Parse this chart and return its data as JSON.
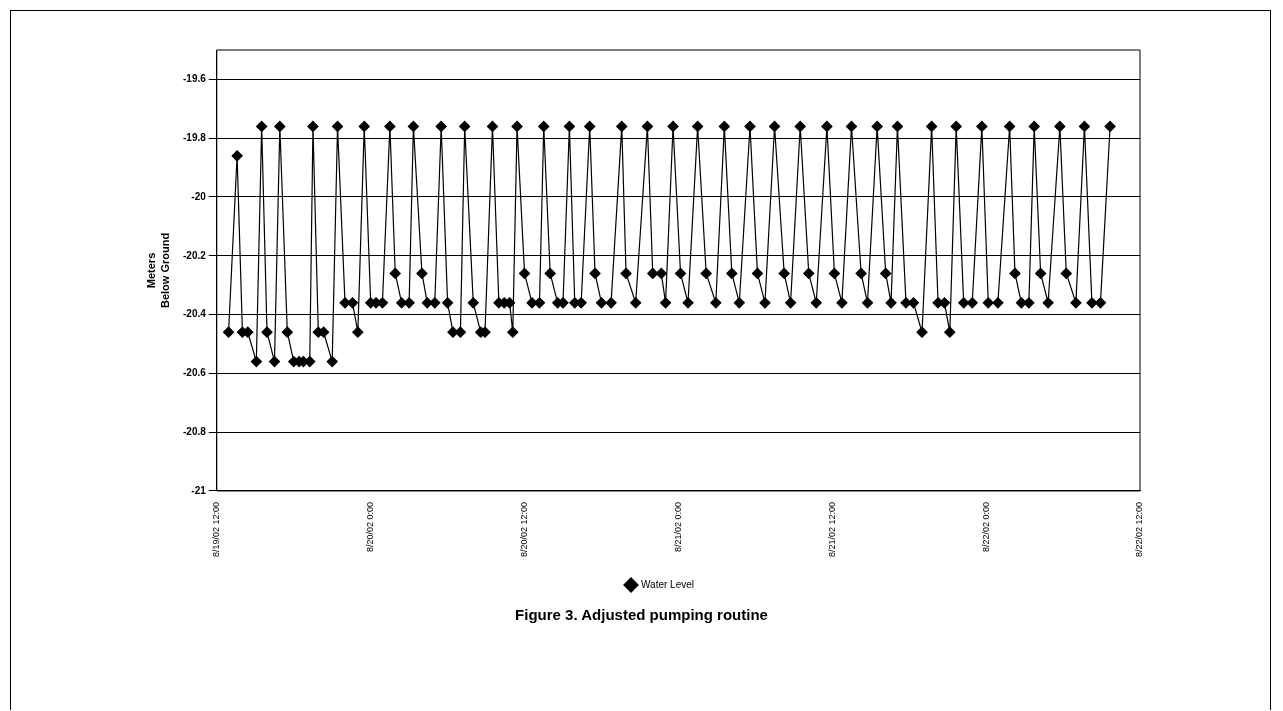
{
  "chart_data": {
    "type": "line",
    "ylabel": "Meters\nBelow Ground",
    "annotations": [
      "Figure 3. Adjusted pumping routine"
    ],
    "xlim": [
      "--08-19T12:00",
      "--08-22T12:00"
    ],
    "xticks": [
      {
        "value": "--08-19T12:00",
        "label": "8/19/02 12:00"
      },
      {
        "value": "--08-20T00:00",
        "label": "8/20/02 0:00"
      },
      {
        "value": "--08-20T12:00",
        "label": "8/20/02 12:00"
      },
      {
        "value": "--08-21T00:00",
        "label": "8/21/02 0:00"
      },
      {
        "value": "--08-21T12:00",
        "label": "8/21/02 12:00"
      },
      {
        "value": "--08-22T00:00",
        "label": "8/22/02 0:00"
      },
      {
        "value": "--08-22T12:00",
        "label": "8/22/02 12:00"
      }
    ],
    "ylim": [
      -21,
      -19.5
    ],
    "yticks": [
      -21,
      -20.8,
      -20.6,
      -20.4,
      -20.2,
      -20,
      -19.8,
      -19.6
    ],
    "grid": "y",
    "legend": "bottom",
    "marker": "diamond",
    "line_style": "solid",
    "series": [
      {
        "name": "Water Level",
        "color": "#000000",
        "x": [
          "--08-19T12:55",
          "--08-19T13:35",
          "--08-19T14:00",
          "--08-19T14:25",
          "--08-19T15:05",
          "--08-19T15:30",
          "--08-19T15:55",
          "--08-19T16:30",
          "--08-19T16:55",
          "--08-19T17:30",
          "--08-19T18:00",
          "--08-19T18:25",
          "--08-19T18:45",
          "--08-19T19:15",
          "--08-19T19:30",
          "--08-19T19:55",
          "--08-19T20:20",
          "--08-19T21:00",
          "--08-19T21:25",
          "--08-19T22:00",
          "--08-19T22:35",
          "--08-19T23:00",
          "--08-19T23:30",
          "--08-20T00:00",
          "--08-20T00:25",
          "--08-20T00:55",
          "--08-20T01:30",
          "--08-20T01:55",
          "--08-20T02:25",
          "--08-20T03:00",
          "--08-20T03:20",
          "--08-20T04:00",
          "--08-20T04:25",
          "--08-20T05:00",
          "--08-20T05:30",
          "--08-20T06:00",
          "--08-20T06:25",
          "--08-20T07:00",
          "--08-20T07:20",
          "--08-20T08:00",
          "--08-20T08:35",
          "--08-20T08:55",
          "--08-20T09:30",
          "--08-20T10:00",
          "--08-20T10:25",
          "--08-20T10:50",
          "--08-20T11:05",
          "--08-20T11:25",
          "--08-20T12:00",
          "--08-20T12:35",
          "--08-20T13:10",
          "--08-20T13:30",
          "--08-20T14:00",
          "--08-20T14:35",
          "--08-20T15:00",
          "--08-20T15:30",
          "--08-20T15:55",
          "--08-20T16:25",
          "--08-20T17:05",
          "--08-20T17:30",
          "--08-20T18:00",
          "--08-20T18:45",
          "--08-20T19:35",
          "--08-20T19:55",
          "--08-20T20:40",
          "--08-20T21:35",
          "--08-20T22:00",
          "--08-20T22:40",
          "--08-20T23:00",
          "--08-20T23:35",
          "--08-21T00:10",
          "--08-21T00:45",
          "--08-21T01:30",
          "--08-21T02:10",
          "--08-21T02:55",
          "--08-21T03:35",
          "--08-21T04:10",
          "--08-21T04:45",
          "--08-21T05:35",
          "--08-21T06:10",
          "--08-21T06:45",
          "--08-21T07:30",
          "--08-21T08:15",
          "--08-21T08:45",
          "--08-21T09:30",
          "--08-21T10:10",
          "--08-21T10:45",
          "--08-21T11:35",
          "--08-21T12:10",
          "--08-21T12:45",
          "--08-21T13:30",
          "--08-21T14:15",
          "--08-21T14:45",
          "--08-21T15:30",
          "--08-21T16:10",
          "--08-21T16:35",
          "--08-21T17:05",
          "--08-21T17:45",
          "--08-21T18:20",
          "--08-21T19:00",
          "--08-21T19:45",
          "--08-21T20:15",
          "--08-21T20:45",
          "--08-21T21:10",
          "--08-21T21:40",
          "--08-21T22:15",
          "--08-21T22:55",
          "--08-21T23:40",
          "--08-22T00:10",
          "--08-22T00:55",
          "--08-22T01:50",
          "--08-22T02:15",
          "--08-22T02:45",
          "--08-22T03:20",
          "--08-22T03:45",
          "--08-22T04:15",
          "--08-22T04:50",
          "--08-22T05:45",
          "--08-22T06:15",
          "--08-22T07:00",
          "--08-22T07:40",
          "--08-22T08:15",
          "--08-22T08:55",
          "--08-22T09:40"
        ],
        "values": [
          -20.46,
          -19.86,
          -20.46,
          -20.46,
          -20.56,
          -19.76,
          -20.46,
          -20.56,
          -19.76,
          -20.46,
          -20.56,
          -20.56,
          -20.56,
          -20.56,
          -19.76,
          -20.46,
          -20.46,
          -20.56,
          -19.76,
          -20.36,
          -20.36,
          -20.46,
          -19.76,
          -20.36,
          -20.36,
          -20.36,
          -19.76,
          -20.26,
          -20.36,
          -20.36,
          -19.76,
          -20.26,
          -20.36,
          -20.36,
          -19.76,
          -20.36,
          -20.46,
          -20.46,
          -19.76,
          -20.36,
          -20.46,
          -20.46,
          -19.76,
          -20.36,
          -20.36,
          -20.36,
          -20.46,
          -19.76,
          -20.26,
          -20.36,
          -20.36,
          -19.76,
          -20.26,
          -20.36,
          -20.36,
          -19.76,
          -20.36,
          -20.36,
          -19.76,
          -20.26,
          -20.36,
          -20.36,
          -19.76,
          -20.26,
          -20.36,
          -19.76,
          -20.26,
          -20.26,
          -20.36,
          -19.76,
          -20.26,
          -20.36,
          -19.76,
          -20.26,
          -20.36,
          -19.76,
          -20.26,
          -20.36,
          -19.76,
          -20.26,
          -20.36,
          -19.76,
          -20.26,
          -20.36,
          -19.76,
          -20.26,
          -20.36,
          -19.76,
          -20.26,
          -20.36,
          -19.76,
          -20.26,
          -20.36,
          -19.76,
          -20.26,
          -20.36,
          -19.76,
          -20.36,
          -20.36,
          -20.46,
          -19.76,
          -20.36,
          -20.36,
          -20.46,
          -19.76,
          -20.36,
          -20.36,
          -19.76,
          -20.36,
          -20.36,
          -19.76,
          -20.26,
          -20.36,
          -20.36,
          -19.76,
          -20.26,
          -20.36,
          -19.76,
          -20.26,
          -20.36,
          -19.76,
          -20.36,
          -20.36,
          -19.76
        ]
      }
    ]
  }
}
